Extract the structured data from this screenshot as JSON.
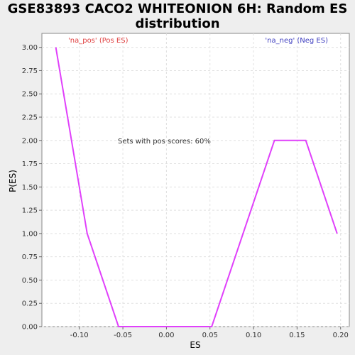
{
  "chart_data": {
    "type": "line",
    "title": "GSE83893 CACO2 WHITEONION 6H: Random ES distribution",
    "xlabel": "ES",
    "ylabel": "P(ES)",
    "xlim": [
      -0.143,
      0.21
    ],
    "ylim": [
      0,
      3.15
    ],
    "grid": true,
    "x_ticks": [
      -0.1,
      -0.05,
      0.0,
      0.05,
      0.1,
      0.15,
      0.2
    ],
    "x_tick_labels": [
      "-0.10",
      "-0.05",
      "0.00",
      "0.05",
      "0.10",
      "0.15",
      "0.20"
    ],
    "y_ticks": [
      0,
      0.25,
      0.5,
      0.75,
      1.0,
      1.25,
      1.5,
      1.75,
      2.0,
      2.25,
      2.5,
      2.75,
      3.0
    ],
    "y_tick_labels": [
      "0.00",
      "0.25",
      "0.50",
      "0.75",
      "1.00",
      "1.25",
      "1.50",
      "1.75",
      "2.00",
      "2.25",
      "2.50",
      "2.75",
      "3.00"
    ],
    "series": [
      {
        "color": "#e040fb",
        "points": [
          [
            -0.127,
            3.0
          ],
          [
            -0.091,
            1.0
          ],
          [
            -0.055,
            0.0
          ],
          [
            0.052,
            0.0
          ],
          [
            0.124,
            2.0
          ],
          [
            0.16,
            2.0
          ],
          [
            0.196,
            1.0
          ]
        ]
      }
    ],
    "annotations": {
      "pos_label": "'na_pos' (Pos ES)",
      "neg_label": "'na_neg' (Neg ES)",
      "center_text": "Sets with pos scores: 60%"
    },
    "colors": {
      "pos": "#e04040",
      "neg": "#4040c0",
      "line": "#e040fb"
    }
  }
}
